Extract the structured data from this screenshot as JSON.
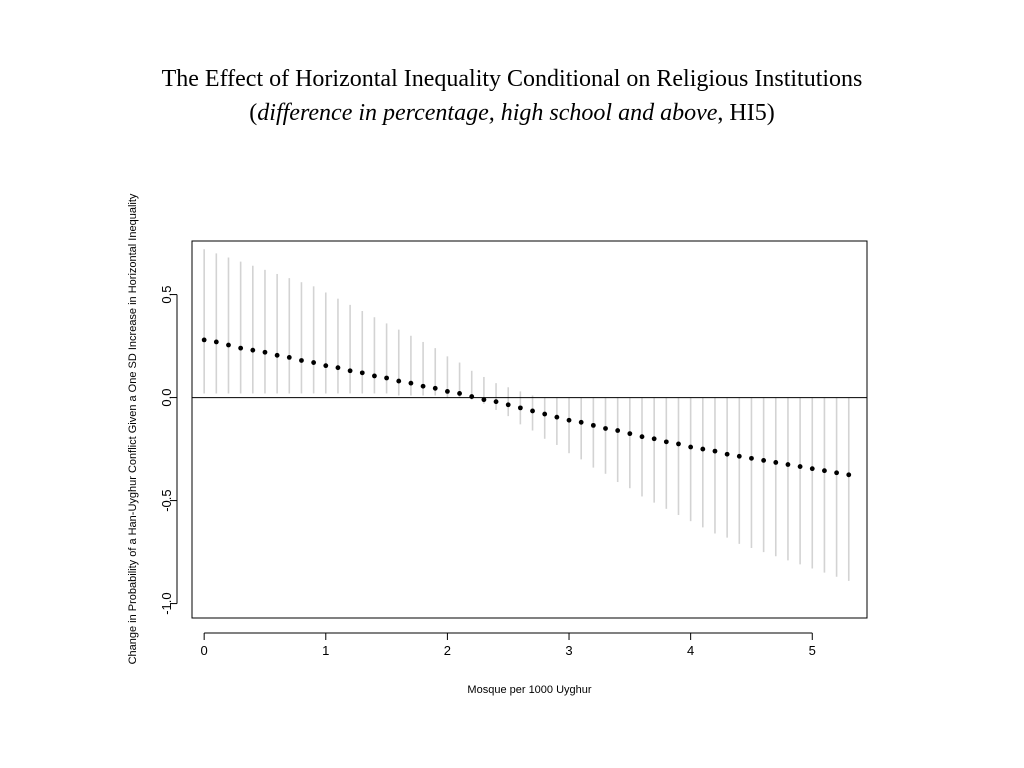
{
  "slide": {
    "title_line1": "The Effect of Horizontal Inequality Conditional on Religious Institutions",
    "title_line2_open": "(",
    "title_line2_italic": "difference in percentage, high school and above",
    "title_line2_rest": ", HI5)"
  },
  "chart_data": {
    "type": "scatter",
    "title": "",
    "xlabel": "Mosque per 1000 Uyghur",
    "ylabel": "Change in Probability of a Han-Uyghur Conflict Given a One SD Increase in Horizontal Inequality",
    "xlim": [
      -0.1,
      5.45
    ],
    "ylim": [
      -1.07,
      0.76
    ],
    "x_ticks": [
      0,
      1,
      2,
      3,
      4,
      5
    ],
    "y_ticks": [
      -1.0,
      -0.5,
      0.0,
      0.5
    ],
    "x_tick_labels": [
      "0",
      "1",
      "2",
      "3",
      "4",
      "5"
    ],
    "y_tick_labels": [
      "-1.0",
      "-0.5",
      "0.0",
      "0.5"
    ],
    "reference_line_y": 0,
    "point_color": "#000000",
    "interval_color": "#d3d3d3",
    "x_start": 0,
    "x_step": 0.1,
    "estimates": [
      0.28,
      0.27,
      0.255,
      0.24,
      0.23,
      0.22,
      0.205,
      0.195,
      0.18,
      0.17,
      0.155,
      0.145,
      0.13,
      0.12,
      0.105,
      0.095,
      0.08,
      0.07,
      0.055,
      0.045,
      0.03,
      0.02,
      0.005,
      -0.01,
      -0.02,
      -0.035,
      -0.05,
      -0.065,
      -0.08,
      -0.095,
      -0.11,
      -0.12,
      -0.135,
      -0.15,
      -0.16,
      -0.175,
      -0.19,
      -0.2,
      -0.215,
      -0.225,
      -0.24,
      -0.25,
      -0.26,
      -0.275,
      -0.285,
      -0.295,
      -0.305,
      -0.315,
      -0.325,
      -0.335,
      -0.345,
      -0.355,
      -0.365,
      -0.375
    ],
    "lower": [
      0.02,
      0.02,
      0.02,
      0.02,
      0.02,
      0.02,
      0.02,
      0.02,
      0.02,
      0.02,
      0.02,
      0.02,
      0.02,
      0.02,
      0.02,
      0.02,
      0.01,
      0.01,
      0.01,
      0.01,
      0.0,
      0.0,
      -0.01,
      -0.03,
      -0.06,
      -0.09,
      -0.13,
      -0.16,
      -0.2,
      -0.23,
      -0.27,
      -0.3,
      -0.34,
      -0.37,
      -0.41,
      -0.44,
      -0.48,
      -0.51,
      -0.54,
      -0.57,
      -0.6,
      -0.63,
      -0.66,
      -0.68,
      -0.71,
      -0.73,
      -0.75,
      -0.77,
      -0.79,
      -0.81,
      -0.83,
      -0.85,
      -0.87,
      -0.89
    ],
    "upper": [
      0.72,
      0.7,
      0.68,
      0.66,
      0.64,
      0.62,
      0.6,
      0.58,
      0.56,
      0.54,
      0.51,
      0.48,
      0.45,
      0.42,
      0.39,
      0.36,
      0.33,
      0.3,
      0.27,
      0.24,
      0.2,
      0.17,
      0.13,
      0.1,
      0.07,
      0.05,
      0.03,
      0.01,
      0.0,
      0.0,
      0.0,
      0.0,
      0.0,
      0.0,
      0.0,
      0.0,
      0.0,
      0.0,
      0.0,
      0.0,
      0.0,
      0.0,
      0.0,
      0.0,
      0.0,
      0.0,
      0.0,
      0.0,
      0.0,
      0.0,
      0.0,
      0.0,
      0.0,
      0.0
    ]
  }
}
